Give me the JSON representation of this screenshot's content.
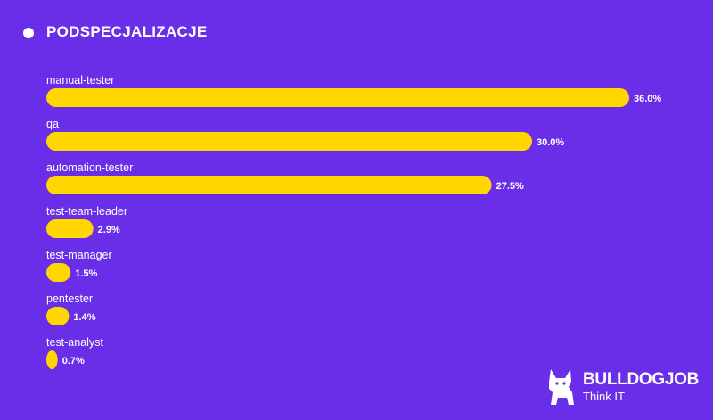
{
  "title": "PODSPECJALIZACJE",
  "logo": {
    "name": "BULLDOGJOB",
    "tagline": "Think IT"
  },
  "colors": {
    "background": "#6a2ee8",
    "bar": "#ffd600",
    "text": "#ffffff"
  },
  "chart_data": {
    "type": "bar",
    "orientation": "horizontal",
    "title": "PODSPECJALIZACJE",
    "categories": [
      "manual-tester",
      "qa",
      "automation-tester",
      "test-team-leader",
      "test-manager",
      "pentester",
      "test-analyst"
    ],
    "values": [
      36.0,
      30.0,
      27.5,
      2.9,
      1.5,
      1.4,
      0.7
    ],
    "value_labels": [
      "36.0%",
      "30.0%",
      "27.5%",
      "2.9%",
      "1.5%",
      "1.4%",
      "0.7%"
    ],
    "unit": "%",
    "grid": false,
    "legend": "none"
  }
}
